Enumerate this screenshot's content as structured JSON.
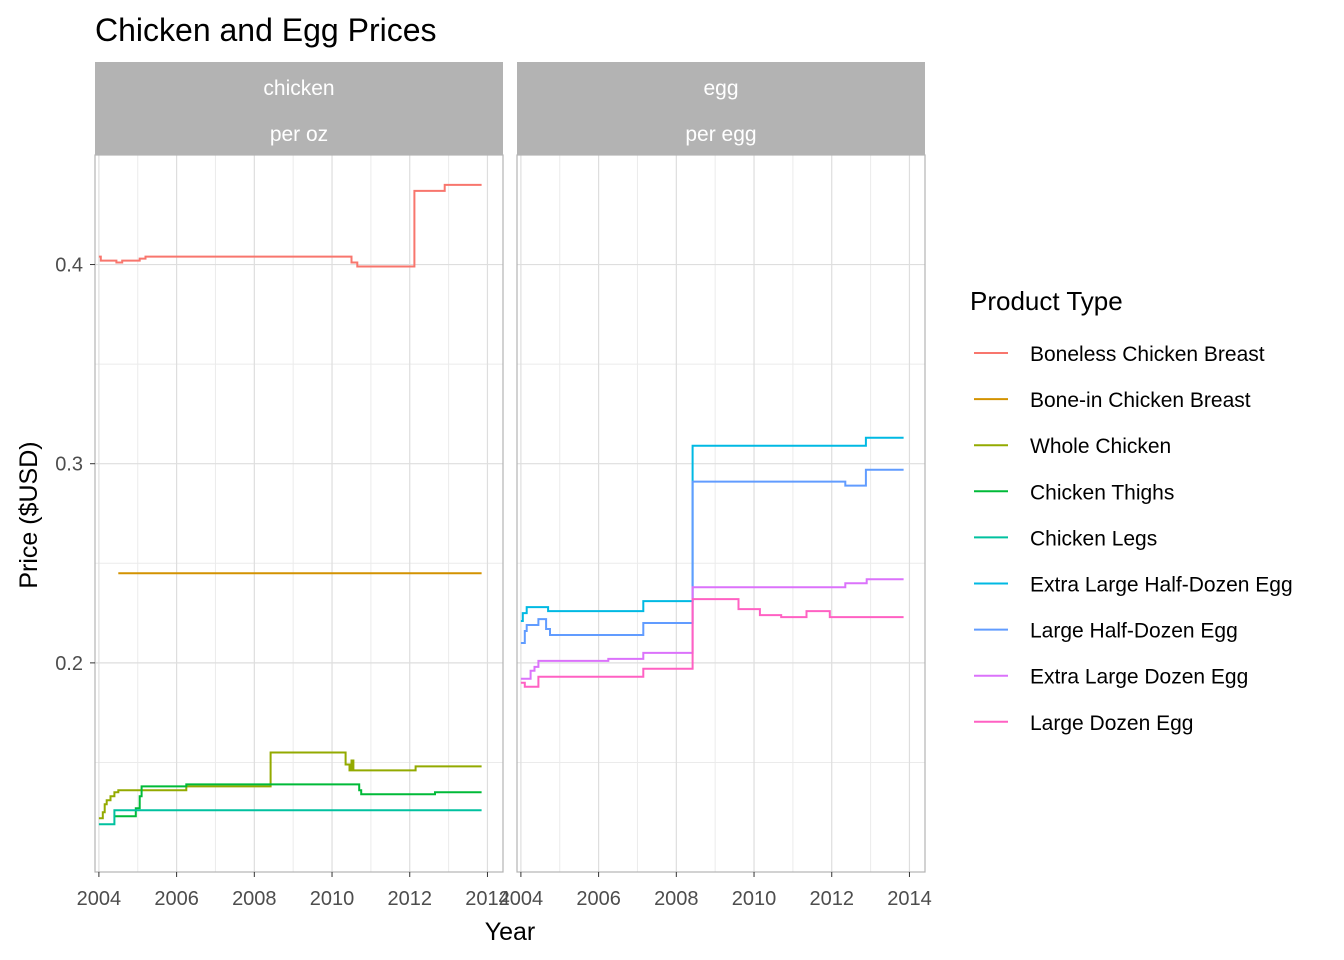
{
  "chart_data": {
    "type": "line",
    "subtype": "step",
    "title": "Chicken and Egg Prices",
    "xlabel": "Year",
    "ylabel": "Price ($USD)",
    "xlim": [
      2003.9,
      2014.4
    ],
    "ylim": [
      0.095,
      0.455
    ],
    "x_ticks": [
      2004,
      2006,
      2008,
      2010,
      2012,
      2014
    ],
    "x_tick_labels": [
      "2004",
      "2006",
      "2008",
      "2010",
      "2012",
      "2014"
    ],
    "y_ticks": [
      0.2,
      0.3,
      0.4
    ],
    "y_tick_labels": [
      "0.2",
      "0.3",
      "0.4"
    ],
    "y_minor_ticks": [
      0.15,
      0.25,
      0.35
    ],
    "grid": true,
    "legend": {
      "title": "Product Type",
      "position": "right"
    },
    "facets": [
      {
        "strip": [
          "chicken",
          "per oz"
        ],
        "series": [
          {
            "name": "Boneless Chicken Breast",
            "color": "#F8766D",
            "points": [
              [
                2004.0,
                0.404
              ],
              [
                2004.05,
                0.402
              ],
              [
                2004.3,
                0.402
              ],
              [
                2004.45,
                0.401
              ],
              [
                2004.6,
                0.402
              ],
              [
                2004.95,
                0.402
              ],
              [
                2005.05,
                0.403
              ],
              [
                2005.2,
                0.404
              ],
              [
                2010.4,
                0.404
              ],
              [
                2010.5,
                0.401
              ],
              [
                2010.65,
                0.399
              ],
              [
                2012.1,
                0.399
              ],
              [
                2012.12,
                0.437
              ],
              [
                2012.85,
                0.437
              ],
              [
                2012.9,
                0.44
              ],
              [
                2013.85,
                0.44
              ]
            ]
          },
          {
            "name": "Bone-in Chicken Breast",
            "color": "#D39200",
            "points": [
              [
                2004.5,
                0.245
              ],
              [
                2013.85,
                0.245
              ]
            ]
          },
          {
            "name": "Whole Chicken",
            "color": "#93AA00",
            "points": [
              [
                2004.0,
                0.122
              ],
              [
                2004.1,
                0.125
              ],
              [
                2004.15,
                0.129
              ],
              [
                2004.2,
                0.131
              ],
              [
                2004.3,
                0.133
              ],
              [
                2004.4,
                0.135
              ],
              [
                2004.5,
                0.136
              ],
              [
                2006.2,
                0.136
              ],
              [
                2006.25,
                0.138
              ],
              [
                2008.4,
                0.138
              ],
              [
                2008.42,
                0.155
              ],
              [
                2010.3,
                0.155
              ],
              [
                2010.35,
                0.149
              ],
              [
                2010.45,
                0.146
              ],
              [
                2010.5,
                0.151
              ],
              [
                2010.55,
                0.146
              ],
              [
                2012.1,
                0.146
              ],
              [
                2012.15,
                0.148
              ],
              [
                2013.85,
                0.148
              ]
            ]
          },
          {
            "name": "Chicken Thighs",
            "color": "#00BA38",
            "points": [
              [
                2004.4,
                0.123
              ],
              [
                2004.9,
                0.123
              ],
              [
                2004.95,
                0.127
              ],
              [
                2005.05,
                0.133
              ],
              [
                2005.1,
                0.138
              ],
              [
                2006.2,
                0.138
              ],
              [
                2006.25,
                0.139
              ],
              [
                2010.6,
                0.139
              ],
              [
                2010.7,
                0.136
              ],
              [
                2010.75,
                0.134
              ],
              [
                2012.6,
                0.134
              ],
              [
                2012.65,
                0.135
              ],
              [
                2013.85,
                0.135
              ]
            ]
          },
          {
            "name": "Chicken Legs",
            "color": "#00C19F",
            "points": [
              [
                2004.0,
                0.119
              ],
              [
                2004.35,
                0.119
              ],
              [
                2004.4,
                0.126
              ],
              [
                2013.85,
                0.126
              ]
            ]
          }
        ]
      },
      {
        "strip": [
          "egg",
          "per egg"
        ],
        "series": [
          {
            "name": "Extra Large Half-Dozen Egg",
            "color": "#00B9E3",
            "points": [
              [
                2004.0,
                0.221
              ],
              [
                2004.05,
                0.225
              ],
              [
                2004.15,
                0.228
              ],
              [
                2004.6,
                0.228
              ],
              [
                2004.7,
                0.226
              ],
              [
                2007.1,
                0.226
              ],
              [
                2007.15,
                0.231
              ],
              [
                2008.4,
                0.231
              ],
              [
                2008.42,
                0.309
              ],
              [
                2012.85,
                0.309
              ],
              [
                2012.88,
                0.313
              ],
              [
                2013.85,
                0.313
              ]
            ]
          },
          {
            "name": "Large Half-Dozen Egg",
            "color": "#619CFF",
            "points": [
              [
                2004.0,
                0.21
              ],
              [
                2004.1,
                0.216
              ],
              [
                2004.15,
                0.219
              ],
              [
                2004.4,
                0.219
              ],
              [
                2004.45,
                0.222
              ],
              [
                2004.6,
                0.222
              ],
              [
                2004.65,
                0.217
              ],
              [
                2004.75,
                0.214
              ],
              [
                2007.1,
                0.214
              ],
              [
                2007.15,
                0.22
              ],
              [
                2008.4,
                0.22
              ],
              [
                2008.42,
                0.291
              ],
              [
                2012.3,
                0.291
              ],
              [
                2012.35,
                0.289
              ],
              [
                2012.85,
                0.289
              ],
              [
                2012.88,
                0.297
              ],
              [
                2013.85,
                0.297
              ]
            ]
          },
          {
            "name": "Extra Large Dozen Egg",
            "color": "#DB72FB",
            "points": [
              [
                2004.0,
                0.192
              ],
              [
                2004.2,
                0.192
              ],
              [
                2004.25,
                0.196
              ],
              [
                2004.35,
                0.198
              ],
              [
                2004.45,
                0.201
              ],
              [
                2006.2,
                0.201
              ],
              [
                2006.25,
                0.202
              ],
              [
                2007.1,
                0.202
              ],
              [
                2007.15,
                0.205
              ],
              [
                2008.4,
                0.205
              ],
              [
                2008.42,
                0.238
              ],
              [
                2012.3,
                0.238
              ],
              [
                2012.35,
                0.24
              ],
              [
                2012.85,
                0.24
              ],
              [
                2012.9,
                0.242
              ],
              [
                2013.85,
                0.242
              ]
            ]
          },
          {
            "name": "Large Dozen Egg",
            "color": "#FF61C3",
            "points": [
              [
                2004.0,
                0.19
              ],
              [
                2004.1,
                0.188
              ],
              [
                2004.4,
                0.188
              ],
              [
                2004.45,
                0.193
              ],
              [
                2007.1,
                0.193
              ],
              [
                2007.15,
                0.197
              ],
              [
                2008.4,
                0.197
              ],
              [
                2008.42,
                0.232
              ],
              [
                2009.55,
                0.232
              ],
              [
                2009.6,
                0.227
              ],
              [
                2010.1,
                0.227
              ],
              [
                2010.15,
                0.224
              ],
              [
                2010.65,
                0.224
              ],
              [
                2010.7,
                0.223
              ],
              [
                2011.3,
                0.223
              ],
              [
                2011.35,
                0.226
              ],
              [
                2011.9,
                0.226
              ],
              [
                2011.95,
                0.223
              ],
              [
                2013.85,
                0.223
              ]
            ]
          }
        ]
      }
    ]
  }
}
